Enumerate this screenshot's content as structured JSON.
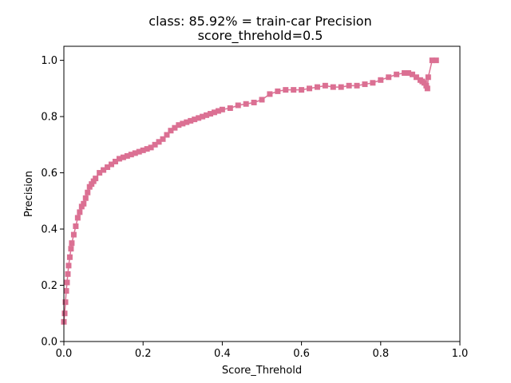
{
  "chart_data": {
    "type": "scatter",
    "title": "class: 85.92% = train-car Precision",
    "subtitle": "score_threhold=0.5",
    "xlabel": "Score_Threhold",
    "ylabel": "Precision",
    "xlim": [
      0.0,
      1.0
    ],
    "ylim": [
      0.0,
      1.05
    ],
    "xticks": [
      "0.0",
      "0.2",
      "0.4",
      "0.6",
      "0.8",
      "1.0"
    ],
    "yticks": [
      "0.0",
      "0.2",
      "0.4",
      "0.6",
      "0.8",
      "1.0"
    ],
    "grid": false,
    "marker": "square",
    "color": "#db7093",
    "series": [
      {
        "x": [
          0.0,
          0.002,
          0.004,
          0.006,
          0.008,
          0.01,
          0.012,
          0.015,
          0.018,
          0.02,
          0.025,
          0.03,
          0.035,
          0.04,
          0.045,
          0.05,
          0.055,
          0.06,
          0.065,
          0.07,
          0.075,
          0.08,
          0.09,
          0.1,
          0.11,
          0.12,
          0.13,
          0.14,
          0.15,
          0.16,
          0.17,
          0.18,
          0.19,
          0.2,
          0.21,
          0.22,
          0.23,
          0.24,
          0.25,
          0.26,
          0.27,
          0.28,
          0.29,
          0.3,
          0.31,
          0.32,
          0.33,
          0.34,
          0.35,
          0.36,
          0.37,
          0.38,
          0.39,
          0.4,
          0.42,
          0.44,
          0.46,
          0.48,
          0.5,
          0.52,
          0.54,
          0.56,
          0.58,
          0.6,
          0.62,
          0.64,
          0.66,
          0.68,
          0.7,
          0.72,
          0.74,
          0.76,
          0.78,
          0.8,
          0.82,
          0.84,
          0.86,
          0.87,
          0.88,
          0.89,
          0.9,
          0.905,
          0.91,
          0.915,
          0.918,
          0.92,
          0.93,
          0.94
        ],
        "y": [
          0.07,
          0.1,
          0.14,
          0.18,
          0.21,
          0.24,
          0.27,
          0.3,
          0.33,
          0.35,
          0.38,
          0.41,
          0.44,
          0.46,
          0.48,
          0.49,
          0.51,
          0.53,
          0.55,
          0.56,
          0.57,
          0.58,
          0.6,
          0.61,
          0.62,
          0.63,
          0.64,
          0.65,
          0.655,
          0.66,
          0.665,
          0.67,
          0.675,
          0.68,
          0.685,
          0.69,
          0.7,
          0.71,
          0.72,
          0.735,
          0.75,
          0.76,
          0.77,
          0.775,
          0.78,
          0.785,
          0.79,
          0.795,
          0.8,
          0.805,
          0.81,
          0.815,
          0.82,
          0.825,
          0.83,
          0.84,
          0.845,
          0.85,
          0.86,
          0.88,
          0.89,
          0.895,
          0.895,
          0.895,
          0.9,
          0.905,
          0.91,
          0.905,
          0.905,
          0.91,
          0.91,
          0.915,
          0.92,
          0.93,
          0.94,
          0.95,
          0.955,
          0.955,
          0.95,
          0.94,
          0.93,
          0.925,
          0.92,
          0.91,
          0.9,
          0.94,
          1.0,
          1.0
        ]
      }
    ]
  }
}
